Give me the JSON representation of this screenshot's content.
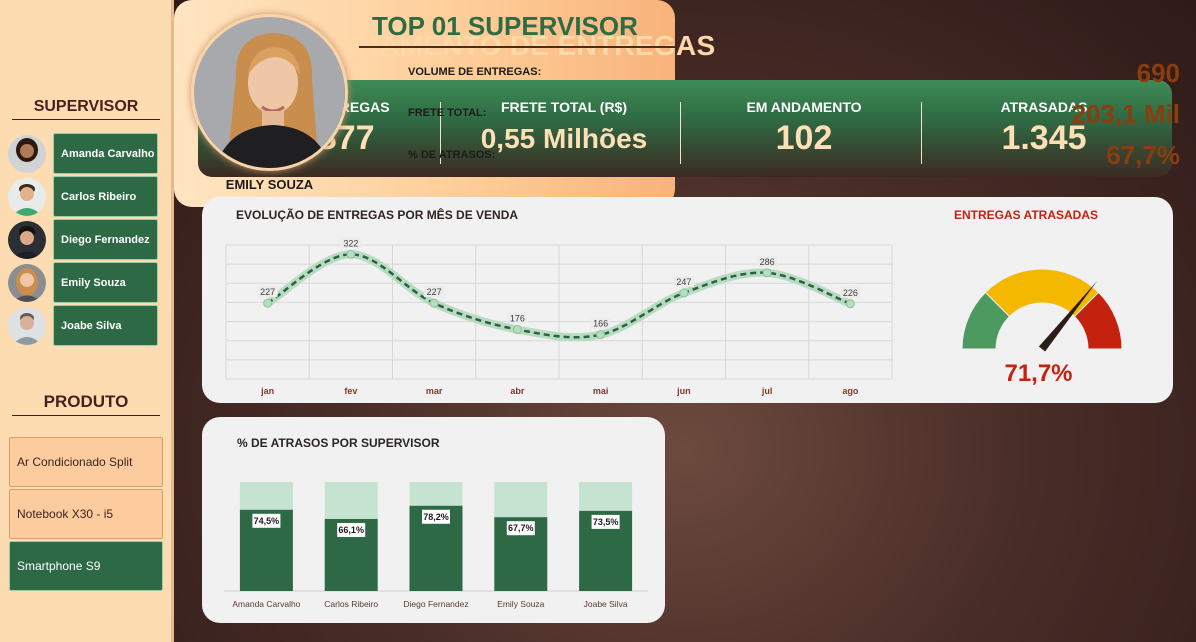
{
  "sidebar": {
    "supervisor_heading": "SUPERVISOR",
    "supervisors": [
      {
        "name": "Amanda Carvalho",
        "skin": "#b07a58",
        "hair": "#2a1a12",
        "shirt": "#d0d4d6"
      },
      {
        "name": "Carlos Ribeiro",
        "skin": "#e0b28c",
        "hair": "#3a2a1e",
        "shirt": "#3ea874"
      },
      {
        "name": "Diego Fernandez",
        "skin": "#d9a98a",
        "hair": "#16110e",
        "shirt": "#1f1f24"
      },
      {
        "name": "Emily Souza",
        "skin": "#efc7a6",
        "hair": "#c98d4e",
        "shirt": "#4f4f55"
      },
      {
        "name": "Joabe Silva",
        "skin": "#d7b299",
        "hair": "#6b5a4f",
        "shirt": "#8f9aa3"
      }
    ],
    "product_heading": "PRODUTO",
    "products": [
      {
        "label": "Ar Condicionado Split",
        "selected": false
      },
      {
        "label": "Notebook X30 - i5",
        "selected": false
      },
      {
        "label": "Smartphone S9",
        "selected": true
      }
    ]
  },
  "header": {
    "title": "ACOMPANHAMENTO DE ENTREGAS"
  },
  "kpis": [
    {
      "label": "QTD. ENTREGAS",
      "value": "1.877"
    },
    {
      "label": "FRETE TOTAL (R$)",
      "value": "0,55 Milhões"
    },
    {
      "label": "EM ANDAMENTO",
      "value": "102"
    },
    {
      "label": "ATRASADAS",
      "value": "1.345"
    }
  ],
  "line_chart": {
    "title": "EVOLUÇÃO DE ENTREGAS POR MÊS DE VENDA",
    "chart_data": {
      "type": "line",
      "categories": [
        "jan",
        "fev",
        "mar",
        "abr",
        "mai",
        "jun",
        "jul",
        "ago"
      ],
      "values": [
        227,
        322,
        227,
        176,
        166,
        247,
        286,
        226
      ],
      "ylim": [
        80,
        340
      ],
      "grid": true,
      "smooth": true
    }
  },
  "gauge": {
    "title": "ENTREGAS ATRASADAS",
    "value_label": "71,7%",
    "value": 0.717,
    "colors": {
      "low": "#4c9a5f",
      "mid": "#f5b800",
      "high": "#c4220f"
    }
  },
  "bar_chart": {
    "title": "% DE ATRASOS POR SUPERVISOR",
    "chart_data": {
      "type": "bar",
      "stacked_percent": true,
      "categories": [
        "Amanda Carvalho",
        "Carlos Ribeiro",
        "Diego Fernandez",
        "Emily Souza",
        "Joabe Silva"
      ],
      "values": [
        74.5,
        66.1,
        78.2,
        67.7,
        73.5
      ],
      "value_labels": [
        "74,5%",
        "66,1%",
        "78,2%",
        "67,7%",
        "73,5%"
      ],
      "ylim": [
        0,
        100
      ],
      "colors": {
        "value": "#2e6945",
        "remainder": "#c5e3d0"
      }
    }
  },
  "top_supervisor": {
    "title": "TOP 01 SUPERVISOR",
    "name": "EMILY SOUZA",
    "metrics": [
      {
        "label": "VOLUME DE ENTREGAS:",
        "value": "690"
      },
      {
        "label": "FRETE TOTAL:",
        "value": "203,1 Mil"
      },
      {
        "label": "% DE ATRASOS:",
        "value": "67,7%"
      }
    ]
  }
}
